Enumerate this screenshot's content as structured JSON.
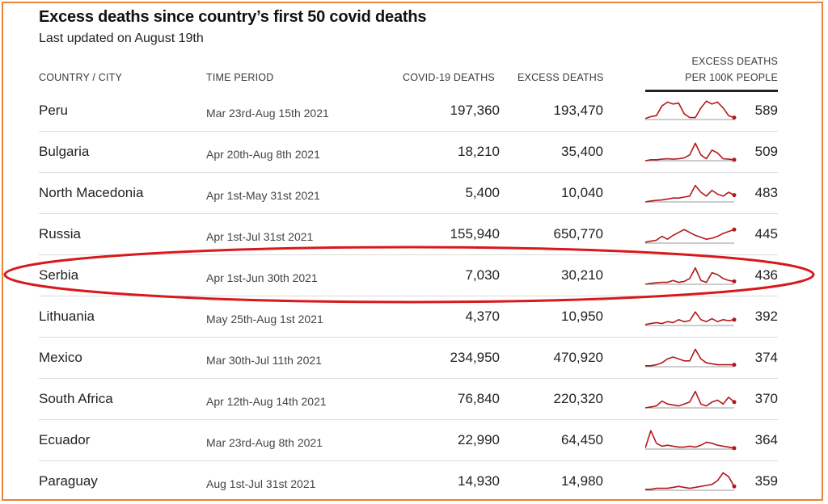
{
  "title": "Excess deaths since country’s first 50 covid deaths",
  "subtitle": "Last updated on August 19th",
  "columns": {
    "country": "COUNTRY / CITY",
    "period": "TIME PERIOD",
    "covid": "COVID-19 DEATHS",
    "excess": "EXCESS DEATHS",
    "per100k_line1": "EXCESS DEATHS",
    "per100k_line2": "PER 100K PEOPLE"
  },
  "rows": [
    {
      "country": "Peru",
      "period": "Mar 23rd-Aug 15th 2021",
      "covid": "197,360",
      "excess": "193,470",
      "per100k": "589"
    },
    {
      "country": "Bulgaria",
      "period": "Apr 20th-Aug 8th 2021",
      "covid": "18,210",
      "excess": "35,400",
      "per100k": "509"
    },
    {
      "country": "North Macedonia",
      "period": "Apr 1st-May 31st 2021",
      "covid": "5,400",
      "excess": "10,040",
      "per100k": "483"
    },
    {
      "country": "Russia",
      "period": "Apr 1st-Jul 31st 2021",
      "covid": "155,940",
      "excess": "650,770",
      "per100k": "445"
    },
    {
      "country": "Serbia",
      "period": "Apr 1st-Jun 30th 2021",
      "covid": "7,030",
      "excess": "30,210",
      "per100k": "436"
    },
    {
      "country": "Lithuania",
      "period": "May 25th-Aug 1st 2021",
      "covid": "4,370",
      "excess": "10,950",
      "per100k": "392"
    },
    {
      "country": "Mexico",
      "period": "Mar 30th-Jul 11th 2021",
      "covid": "234,950",
      "excess": "470,920",
      "per100k": "374"
    },
    {
      "country": "South Africa",
      "period": "Apr 12th-Aug 14th 2021",
      "covid": "76,840",
      "excess": "220,320",
      "per100k": "370"
    },
    {
      "country": "Ecuador",
      "period": "Mar 23rd-Aug 8th 2021",
      "covid": "22,990",
      "excess": "64,450",
      "per100k": "364"
    },
    {
      "country": "Paraguay",
      "period": "Aug 1st-Jul 31st 2021",
      "covid": "14,930",
      "excess": "14,980",
      "per100k": "359"
    }
  ],
  "sparklines": [
    [
      0.05,
      0.15,
      0.2,
      0.7,
      0.9,
      0.8,
      0.85,
      0.3,
      0.1,
      0.1,
      0.6,
      0.95,
      0.8,
      0.9,
      0.6,
      0.2,
      0.1
    ],
    [
      0.0,
      0.05,
      0.05,
      0.08,
      0.1,
      0.08,
      0.1,
      0.15,
      0.3,
      0.9,
      0.3,
      0.1,
      0.55,
      0.4,
      0.1,
      0.08,
      0.05
    ],
    [
      0.0,
      0.05,
      0.08,
      0.1,
      0.15,
      0.2,
      0.2,
      0.25,
      0.3,
      0.85,
      0.5,
      0.3,
      0.6,
      0.4,
      0.3,
      0.5,
      0.35
    ],
    [
      0.05,
      0.1,
      0.15,
      0.35,
      0.2,
      0.4,
      0.55,
      0.7,
      0.55,
      0.4,
      0.3,
      0.2,
      0.25,
      0.35,
      0.5,
      0.6,
      0.7
    ],
    [
      0.0,
      0.05,
      0.08,
      0.1,
      0.1,
      0.2,
      0.1,
      0.15,
      0.3,
      0.85,
      0.2,
      0.1,
      0.6,
      0.5,
      0.3,
      0.2,
      0.15
    ],
    [
      0.05,
      0.1,
      0.15,
      0.1,
      0.2,
      0.15,
      0.3,
      0.2,
      0.25,
      0.7,
      0.3,
      0.2,
      0.35,
      0.2,
      0.3,
      0.25,
      0.3
    ],
    [
      0.05,
      0.05,
      0.1,
      0.2,
      0.4,
      0.5,
      0.4,
      0.3,
      0.3,
      0.9,
      0.4,
      0.2,
      0.15,
      0.1,
      0.1,
      0.1,
      0.1
    ],
    [
      0.0,
      0.05,
      0.1,
      0.35,
      0.2,
      0.15,
      0.1,
      0.2,
      0.3,
      0.85,
      0.2,
      0.1,
      0.3,
      0.4,
      0.2,
      0.55,
      0.3
    ],
    [
      0.05,
      0.95,
      0.3,
      0.15,
      0.2,
      0.15,
      0.1,
      0.1,
      0.15,
      0.1,
      0.2,
      0.35,
      0.3,
      0.2,
      0.15,
      0.1,
      0.05
    ],
    [
      0.05,
      0.05,
      0.1,
      0.1,
      0.1,
      0.15,
      0.2,
      0.15,
      0.1,
      0.15,
      0.2,
      0.25,
      0.3,
      0.5,
      0.9,
      0.7,
      0.2
    ]
  ],
  "colors": {
    "spark": "#b2181b",
    "accent": "#e8833a",
    "highlight": "#d7191c"
  }
}
